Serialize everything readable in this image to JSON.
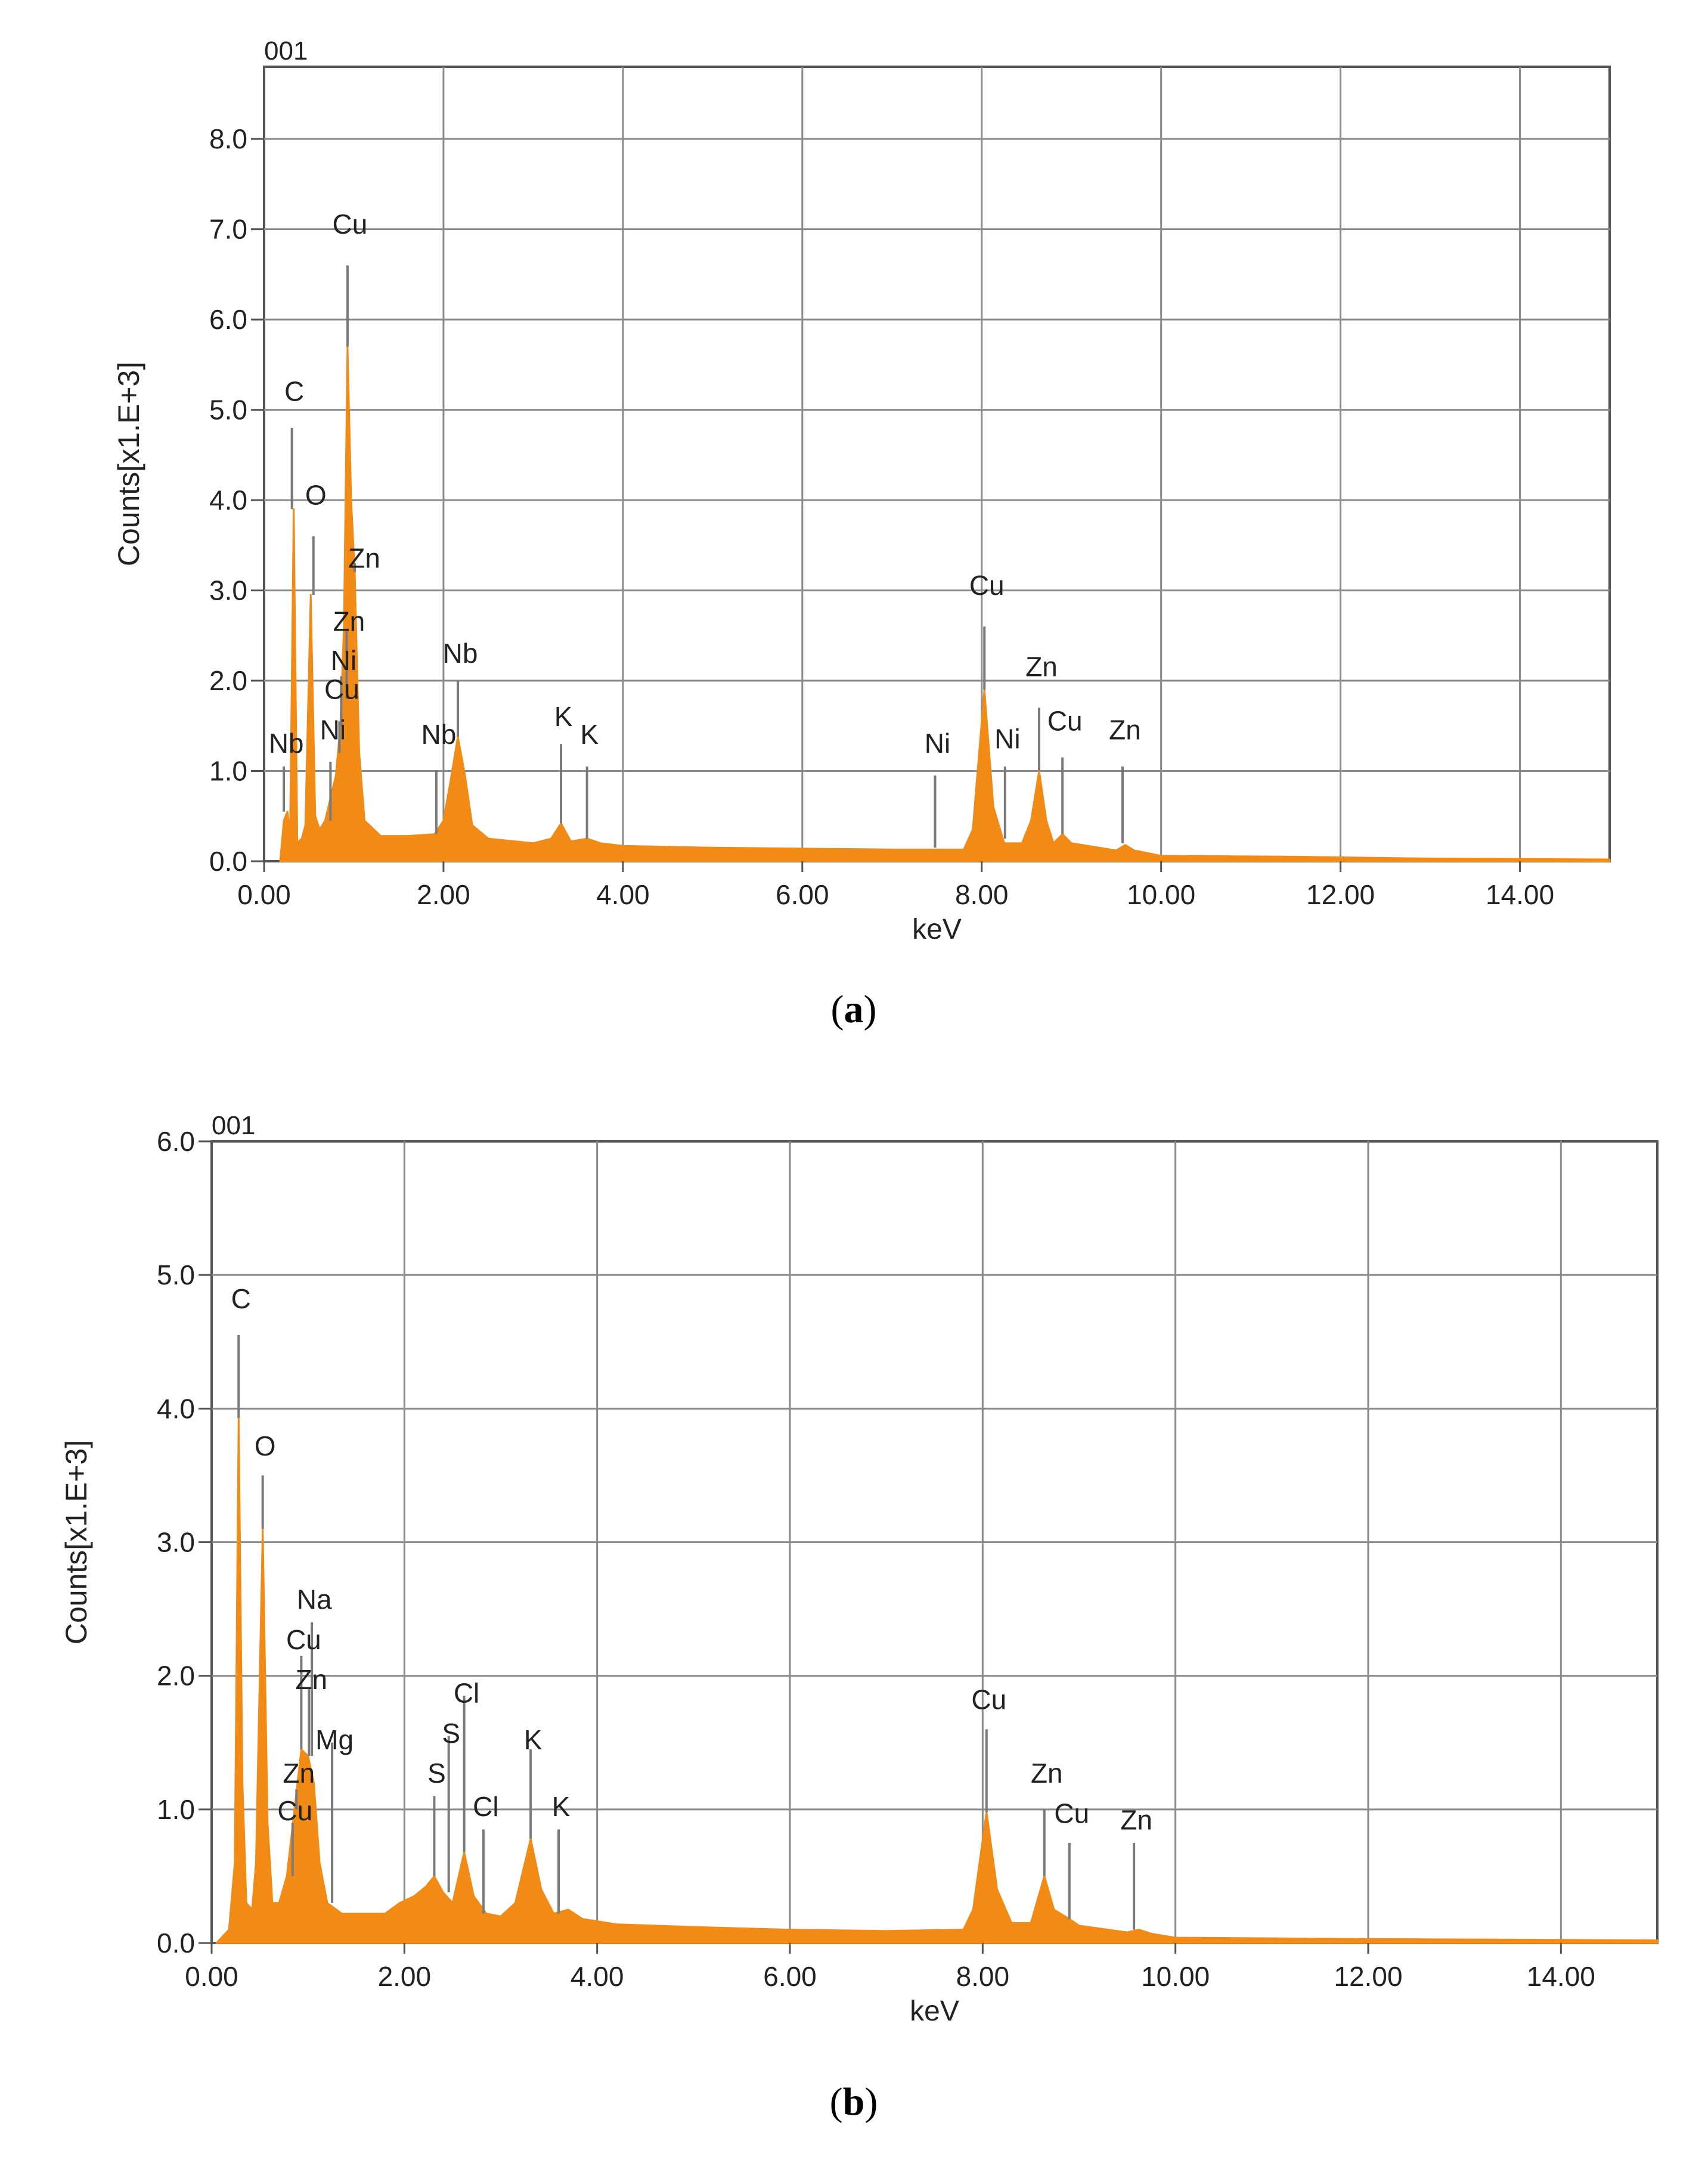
{
  "chart_data": [
    {
      "type": "area",
      "panel_label": "(a)",
      "panel_letter": "a",
      "corner_label": "001",
      "xlabel": "keV",
      "ylabel": "Counts[x1.E+3]",
      "xlim": [
        0,
        15
      ],
      "ylim": [
        0,
        8.8
      ],
      "x_ticks": [
        0,
        2,
        4,
        6,
        8,
        10,
        12,
        14
      ],
      "x_tick_labels": [
        "0.00",
        "2.00",
        "4.00",
        "6.00",
        "8.00",
        "10.00",
        "12.00",
        "14.00"
      ],
      "y_ticks": [
        0,
        1,
        2,
        3,
        4,
        5,
        6,
        7,
        8
      ],
      "y_tick_labels": [
        "0.0",
        "1.0",
        "2.0",
        "3.0",
        "4.0",
        "5.0",
        "6.0",
        "7.0",
        "8.0"
      ],
      "grid": true,
      "color": "#f28a16",
      "baseline": 0.12,
      "spectrum": [
        {
          "x": 0.18,
          "y": 0.0
        },
        {
          "x": 0.22,
          "y": 0.45
        },
        {
          "x": 0.26,
          "y": 0.55
        },
        {
          "x": 0.29,
          "y": 0.3
        },
        {
          "x": 0.33,
          "y": 3.9
        },
        {
          "x": 0.37,
          "y": 0.2
        },
        {
          "x": 0.42,
          "y": 0.25
        },
        {
          "x": 0.46,
          "y": 0.4
        },
        {
          "x": 0.52,
          "y": 2.95
        },
        {
          "x": 0.57,
          "y": 0.5
        },
        {
          "x": 0.62,
          "y": 0.35
        },
        {
          "x": 0.68,
          "y": 0.45
        },
        {
          "x": 0.74,
          "y": 0.7
        },
        {
          "x": 0.8,
          "y": 0.95
        },
        {
          "x": 0.85,
          "y": 1.5
        },
        {
          "x": 0.89,
          "y": 2.6
        },
        {
          "x": 0.93,
          "y": 5.7
        },
        {
          "x": 0.97,
          "y": 4.0
        },
        {
          "x": 1.01,
          "y": 3.2
        },
        {
          "x": 1.06,
          "y": 1.2
        },
        {
          "x": 1.12,
          "y": 0.45
        },
        {
          "x": 1.3,
          "y": 0.28
        },
        {
          "x": 1.6,
          "y": 0.28
        },
        {
          "x": 1.9,
          "y": 0.3
        },
        {
          "x": 2.0,
          "y": 0.45
        },
        {
          "x": 2.08,
          "y": 0.9
        },
        {
          "x": 2.16,
          "y": 1.38
        },
        {
          "x": 2.24,
          "y": 0.95
        },
        {
          "x": 2.32,
          "y": 0.4
        },
        {
          "x": 2.5,
          "y": 0.25
        },
        {
          "x": 3.0,
          "y": 0.2
        },
        {
          "x": 3.2,
          "y": 0.25
        },
        {
          "x": 3.31,
          "y": 0.42
        },
        {
          "x": 3.42,
          "y": 0.22
        },
        {
          "x": 3.6,
          "y": 0.25
        },
        {
          "x": 3.75,
          "y": 0.2
        },
        {
          "x": 4.0,
          "y": 0.17
        },
        {
          "x": 5.0,
          "y": 0.15
        },
        {
          "x": 6.0,
          "y": 0.14
        },
        {
          "x": 7.0,
          "y": 0.13
        },
        {
          "x": 7.8,
          "y": 0.13
        },
        {
          "x": 7.9,
          "y": 0.35
        },
        {
          "x": 8.03,
          "y": 1.9
        },
        {
          "x": 8.13,
          "y": 0.6
        },
        {
          "x": 8.25,
          "y": 0.2
        },
        {
          "x": 8.45,
          "y": 0.2
        },
        {
          "x": 8.55,
          "y": 0.45
        },
        {
          "x": 8.64,
          "y": 1.0
        },
        {
          "x": 8.72,
          "y": 0.45
        },
        {
          "x": 8.8,
          "y": 0.2
        },
        {
          "x": 8.9,
          "y": 0.3
        },
        {
          "x": 9.0,
          "y": 0.2
        },
        {
          "x": 9.5,
          "y": 0.12
        },
        {
          "x": 9.6,
          "y": 0.18
        },
        {
          "x": 9.7,
          "y": 0.12
        },
        {
          "x": 10.0,
          "y": 0.06
        },
        {
          "x": 11.5,
          "y": 0.05
        },
        {
          "x": 13.0,
          "y": 0.03
        },
        {
          "x": 15.0,
          "y": 0.02
        }
      ],
      "annotations": [
        {
          "label": "C",
          "x": 0.31,
          "line_top": 4.8,
          "line_bottom": 3.9,
          "text_y": 5.1
        },
        {
          "label": "O",
          "x": 0.55,
          "line_top": 3.6,
          "line_bottom": 2.95,
          "text_y": 3.95
        },
        {
          "label": "Cu",
          "x": 0.93,
          "line_top": 6.6,
          "line_bottom": 5.7,
          "text_y": 6.95
        },
        {
          "label": "Zn",
          "x": 1.01,
          "line_top": 3.3,
          "line_bottom": 3.2,
          "text_y": 3.25,
          "text_dx": 0.08
        },
        {
          "label": "Zn",
          "x": 0.92,
          "line_top": 2.55,
          "line_bottom": 1.8,
          "text_y": 2.55
        },
        {
          "label": "Ni",
          "x": 0.86,
          "line_top": 2.05,
          "line_bottom": 1.5,
          "text_y": 2.12
        },
        {
          "label": "Cu",
          "x": 0.84,
          "line_top": 1.55,
          "line_bottom": 1.2,
          "text_y": 1.8
        },
        {
          "label": "Ni",
          "x": 0.74,
          "line_top": 1.1,
          "line_bottom": 0.45,
          "text_y": 1.35
        },
        {
          "label": "Nb",
          "x": 0.22,
          "line_top": 1.05,
          "line_bottom": 0.55,
          "text_y": 1.2
        },
        {
          "label": "Nb",
          "x": 1.92,
          "line_top": 1.0,
          "line_bottom": 0.3,
          "text_y": 1.3
        },
        {
          "label": "Nb",
          "x": 2.16,
          "line_top": 2.0,
          "line_bottom": 1.38,
          "text_y": 2.2
        },
        {
          "label": "K",
          "x": 3.31,
          "line_top": 1.3,
          "line_bottom": 0.42,
          "text_y": 1.5
        },
        {
          "label": "K",
          "x": 3.6,
          "line_top": 1.05,
          "line_bottom": 0.25,
          "text_y": 1.3
        },
        {
          "label": "Cu",
          "x": 8.03,
          "line_top": 2.6,
          "line_bottom": 1.9,
          "text_y": 2.95
        },
        {
          "label": "Ni",
          "x": 7.48,
          "line_top": 0.95,
          "line_bottom": 0.15,
          "text_y": 1.2
        },
        {
          "label": "Ni",
          "x": 8.26,
          "line_top": 1.05,
          "line_bottom": 0.25,
          "text_y": 1.25
        },
        {
          "label": "Zn",
          "x": 8.64,
          "line_top": 1.7,
          "line_bottom": 1.0,
          "text_y": 2.05
        },
        {
          "label": "Cu",
          "x": 8.9,
          "line_top": 1.15,
          "line_bottom": 0.3,
          "text_y": 1.45
        },
        {
          "label": "Zn",
          "x": 9.57,
          "line_top": 1.05,
          "line_bottom": 0.2,
          "text_y": 1.35
        }
      ]
    },
    {
      "type": "area",
      "panel_label": "(b)",
      "panel_letter": "b",
      "corner_label": "001",
      "xlabel": "keV",
      "ylabel": "Counts[x1.E+3]",
      "xlim": [
        0,
        15
      ],
      "ylim": [
        0,
        6.0
      ],
      "x_ticks": [
        0,
        2,
        4,
        6,
        8,
        10,
        12,
        14
      ],
      "x_tick_labels": [
        "0.00",
        "2.00",
        "4.00",
        "6.00",
        "8.00",
        "10.00",
        "12.00",
        "14.00"
      ],
      "y_ticks": [
        0,
        1,
        2,
        3,
        4,
        5,
        6
      ],
      "y_tick_labels": [
        "0.0",
        "1.0",
        "2.0",
        "3.0",
        "4.0",
        "5.0",
        "6.0"
      ],
      "grid": true,
      "color": "#f28a16",
      "baseline": 0.08,
      "spectrum": [
        {
          "x": 0.05,
          "y": 0.0
        },
        {
          "x": 0.18,
          "y": 0.1
        },
        {
          "x": 0.24,
          "y": 0.6
        },
        {
          "x": 0.28,
          "y": 3.93
        },
        {
          "x": 0.32,
          "y": 1.2
        },
        {
          "x": 0.36,
          "y": 0.3
        },
        {
          "x": 0.42,
          "y": 0.25
        },
        {
          "x": 0.46,
          "y": 0.6
        },
        {
          "x": 0.53,
          "y": 3.1
        },
        {
          "x": 0.58,
          "y": 0.9
        },
        {
          "x": 0.63,
          "y": 0.3
        },
        {
          "x": 0.7,
          "y": 0.3
        },
        {
          "x": 0.78,
          "y": 0.5
        },
        {
          "x": 0.86,
          "y": 1.0
        },
        {
          "x": 0.93,
          "y": 1.45
        },
        {
          "x": 1.0,
          "y": 1.4
        },
        {
          "x": 1.06,
          "y": 1.2
        },
        {
          "x": 1.12,
          "y": 0.6
        },
        {
          "x": 1.2,
          "y": 0.3
        },
        {
          "x": 1.35,
          "y": 0.22
        },
        {
          "x": 1.6,
          "y": 0.22
        },
        {
          "x": 1.8,
          "y": 0.22
        },
        {
          "x": 1.95,
          "y": 0.3
        },
        {
          "x": 2.1,
          "y": 0.35
        },
        {
          "x": 2.22,
          "y": 0.42
        },
        {
          "x": 2.31,
          "y": 0.5
        },
        {
          "x": 2.4,
          "y": 0.38
        },
        {
          "x": 2.5,
          "y": 0.3
        },
        {
          "x": 2.62,
          "y": 0.68
        },
        {
          "x": 2.72,
          "y": 0.35
        },
        {
          "x": 2.85,
          "y": 0.22
        },
        {
          "x": 3.0,
          "y": 0.2
        },
        {
          "x": 3.15,
          "y": 0.3
        },
        {
          "x": 3.31,
          "y": 0.78
        },
        {
          "x": 3.42,
          "y": 0.4
        },
        {
          "x": 3.55,
          "y": 0.22
        },
        {
          "x": 3.7,
          "y": 0.25
        },
        {
          "x": 3.85,
          "y": 0.18
        },
        {
          "x": 4.2,
          "y": 0.14
        },
        {
          "x": 5.0,
          "y": 0.12
        },
        {
          "x": 6.0,
          "y": 0.1
        },
        {
          "x": 7.0,
          "y": 0.09
        },
        {
          "x": 7.8,
          "y": 0.1
        },
        {
          "x": 7.9,
          "y": 0.25
        },
        {
          "x": 8.04,
          "y": 0.98
        },
        {
          "x": 8.15,
          "y": 0.4
        },
        {
          "x": 8.3,
          "y": 0.15
        },
        {
          "x": 8.5,
          "y": 0.15
        },
        {
          "x": 8.64,
          "y": 0.5
        },
        {
          "x": 8.74,
          "y": 0.25
        },
        {
          "x": 8.9,
          "y": 0.18
        },
        {
          "x": 9.0,
          "y": 0.13
        },
        {
          "x": 9.5,
          "y": 0.08
        },
        {
          "x": 9.62,
          "y": 0.1
        },
        {
          "x": 9.75,
          "y": 0.07
        },
        {
          "x": 10.0,
          "y": 0.04
        },
        {
          "x": 12.0,
          "y": 0.03
        },
        {
          "x": 15.0,
          "y": 0.02
        }
      ],
      "annotations": [
        {
          "label": "C",
          "x": 0.28,
          "line_top": 4.55,
          "line_bottom": 3.93,
          "text_y": 4.75
        },
        {
          "label": "O",
          "x": 0.53,
          "line_top": 3.5,
          "line_bottom": 3.1,
          "text_y": 3.65
        },
        {
          "label": "Na",
          "x": 1.04,
          "line_top": 2.4,
          "line_bottom": 1.4,
          "text_y": 2.5
        },
        {
          "label": "Cu",
          "x": 0.93,
          "line_top": 2.15,
          "line_bottom": 1.45,
          "text_y": 2.2
        },
        {
          "label": "Zn",
          "x": 1.01,
          "line_top": 1.9,
          "line_bottom": 1.4,
          "text_y": 1.9
        },
        {
          "label": "Mg",
          "x": 1.25,
          "line_top": 1.5,
          "line_bottom": 0.3,
          "text_y": 1.45
        },
        {
          "label": "Zn",
          "x": 0.88,
          "line_top": 1.15,
          "line_bottom": 1.0,
          "text_y": 1.2
        },
        {
          "label": "Cu",
          "x": 0.84,
          "line_top": 0.9,
          "line_bottom": 0.5,
          "text_y": 0.92
        },
        {
          "label": "Cl",
          "x": 2.62,
          "line_top": 1.85,
          "line_bottom": 0.68,
          "text_y": 1.8
        },
        {
          "label": "S",
          "x": 2.46,
          "line_top": 1.55,
          "line_bottom": 0.38,
          "text_y": 1.5
        },
        {
          "label": "S",
          "x": 2.31,
          "line_top": 1.1,
          "line_bottom": 0.5,
          "text_y": 1.2
        },
        {
          "label": "Cl",
          "x": 2.82,
          "line_top": 0.85,
          "line_bottom": 0.22,
          "text_y": 0.95
        },
        {
          "label": "K",
          "x": 3.31,
          "line_top": 1.45,
          "line_bottom": 0.78,
          "text_y": 1.45
        },
        {
          "label": "K",
          "x": 3.6,
          "line_top": 0.85,
          "line_bottom": 0.22,
          "text_y": 0.95
        },
        {
          "label": "Cu",
          "x": 8.04,
          "line_top": 1.6,
          "line_bottom": 0.98,
          "text_y": 1.75
        },
        {
          "label": "Zn",
          "x": 8.64,
          "line_top": 1.0,
          "line_bottom": 0.5,
          "text_y": 1.2
        },
        {
          "label": "Cu",
          "x": 8.9,
          "line_top": 0.75,
          "line_bottom": 0.18,
          "text_y": 0.9
        },
        {
          "label": "Zn",
          "x": 9.57,
          "line_top": 0.75,
          "line_bottom": 0.1,
          "text_y": 0.85
        }
      ]
    }
  ]
}
